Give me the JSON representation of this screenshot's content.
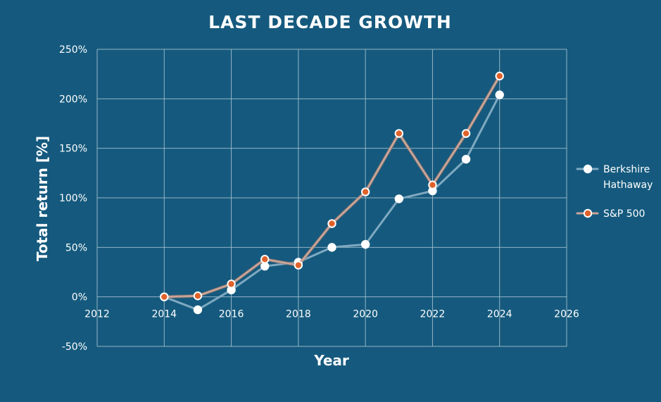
{
  "chart_data": {
    "type": "scatter",
    "title": "LAST DECADE GROWTH",
    "xlabel": "Year",
    "ylabel": "Total return [%]",
    "xlim": [
      2012,
      2026
    ],
    "ylim": [
      -50,
      250
    ],
    "x_ticks": [
      2012,
      2014,
      2016,
      2018,
      2020,
      2022,
      2024,
      2026
    ],
    "x_tick_labels": [
      "2012",
      "2014",
      "2016",
      "2018",
      "2020",
      "2022",
      "2024",
      "2026"
    ],
    "y_ticks": [
      -50,
      0,
      50,
      100,
      150,
      200,
      250
    ],
    "y_tick_labels": [
      "-50%",
      "0%",
      "50%",
      "100%",
      "150%",
      "200%",
      "250%"
    ],
    "grid": true,
    "legend_position": "right",
    "series": [
      {
        "name": "Berkshire Hathaway",
        "line_color": "#7fa9c1",
        "marker_fill": "#ffffff",
        "x": [
          2014,
          2015,
          2016,
          2017,
          2018,
          2019,
          2020,
          2021,
          2022,
          2023,
          2024
        ],
        "y": [
          0,
          -13,
          7,
          31,
          35,
          50,
          53,
          99,
          107,
          139,
          204
        ]
      },
      {
        "name": "S&P 500",
        "line_color": "#c9a497",
        "marker_fill": "#e0622b",
        "x": [
          2014,
          2015,
          2016,
          2017,
          2018,
          2019,
          2020,
          2021,
          2022,
          2023,
          2024
        ],
        "y": [
          0,
          1,
          13,
          38,
          32,
          74,
          106,
          165,
          113,
          165,
          223
        ]
      }
    ]
  }
}
